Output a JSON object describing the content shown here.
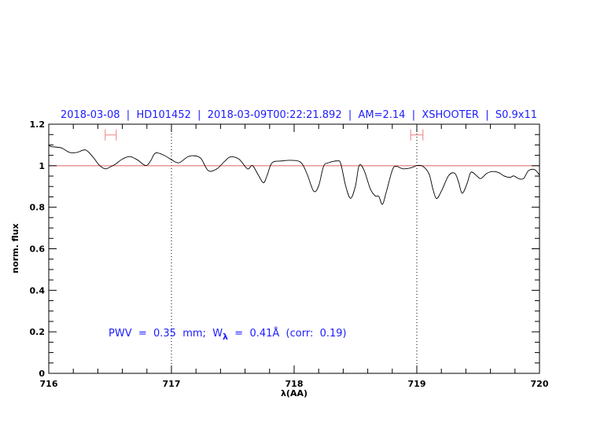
{
  "chart_data": {
    "type": "line",
    "title": "2018-03-08  |  HD101452  |  2018-03-09T00:22:21.892  |  AM=2.14  |  XSHOOTER  |  S0.9x11",
    "xlabel": "λ(AA)",
    "ylabel": "norm. flux",
    "xlim": [
      716,
      720
    ],
    "ylim": [
      0,
      1.2
    ],
    "xticks": [
      "716",
      "717",
      "718",
      "719",
      "720"
    ],
    "yticks": [
      "0",
      "0.2",
      "0.4",
      "0.6",
      "0.8",
      "1",
      "1.2"
    ],
    "reference_line": 1,
    "dotted_vlines": [
      717,
      719
    ],
    "annotation": {
      "prefix": "PWV  =  0.35  mm;  W",
      "subscript": "λ",
      "suffix": "  =  0.41Å  (corr:  0.19)"
    },
    "error_bars": [
      {
        "x_from": 716.46,
        "x_to": 716.55,
        "y": 1.148
      },
      {
        "x_from": 718.95,
        "x_to": 719.05,
        "y": 1.148
      }
    ],
    "colors": {
      "spectrum": "#000000",
      "reference_line": "#e06060",
      "error_bars": "#f08080",
      "text": "#1c1cff"
    },
    "series": [
      {
        "x": [
          716.0,
          716.02,
          716.1,
          716.17,
          716.23,
          716.3,
          716.36,
          716.41,
          716.46,
          716.51,
          716.55,
          716.6,
          716.66,
          716.72,
          716.79,
          716.83,
          716.87,
          716.94,
          717.0,
          717.06,
          717.13,
          717.18,
          717.24,
          717.3,
          717.37,
          717.43,
          717.48,
          717.55,
          717.62,
          717.66,
          717.71,
          717.75,
          717.78,
          717.82,
          717.9,
          717.96,
          718.03,
          718.07,
          718.11,
          718.16,
          718.2,
          718.24,
          718.28,
          718.35,
          718.38,
          718.42,
          718.46,
          718.5,
          718.53,
          718.57,
          718.62,
          718.66,
          718.69,
          718.72,
          718.75,
          718.8,
          718.83,
          718.89,
          718.96,
          719.0,
          719.05,
          719.1,
          719.13,
          719.16,
          719.2,
          719.26,
          719.31,
          719.34,
          719.37,
          719.41,
          719.44,
          719.48,
          719.52,
          719.57,
          719.62,
          719.67,
          719.71,
          719.76,
          719.79,
          719.83,
          719.87,
          719.91,
          719.96,
          720.0
        ],
        "y": [
          1.1,
          1.092,
          1.086,
          1.064,
          1.064,
          1.076,
          1.042,
          1.004,
          0.985,
          0.997,
          1.01,
          1.032,
          1.044,
          1.029,
          1.001,
          1.023,
          1.061,
          1.05,
          1.029,
          1.014,
          1.042,
          1.048,
          1.035,
          0.976,
          0.985,
          1.019,
          1.042,
          1.032,
          0.985,
          1.001,
          0.953,
          0.918,
          0.953,
          1.014,
          1.023,
          1.026,
          1.023,
          1.005,
          0.953,
          0.877,
          0.903,
          0.997,
          1.014,
          1.023,
          1.01,
          0.903,
          0.843,
          0.903,
          1.001,
          0.978,
          0.89,
          0.855,
          0.852,
          0.814,
          0.871,
          0.978,
          0.997,
          0.985,
          0.991,
          1.001,
          0.997,
          0.96,
          0.89,
          0.842,
          0.877,
          0.953,
          0.963,
          0.922,
          0.867,
          0.915,
          0.968,
          0.956,
          0.938,
          0.963,
          0.972,
          0.966,
          0.951,
          0.944,
          0.951,
          0.938,
          0.938,
          0.976,
          0.981,
          0.955
        ]
      }
    ]
  }
}
